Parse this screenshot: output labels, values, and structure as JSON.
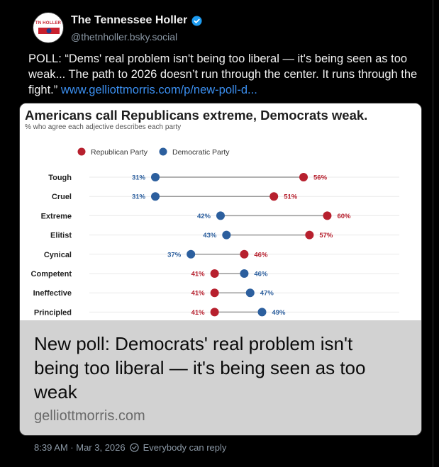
{
  "author": {
    "display_name": "The Tennessee Holler",
    "handle": "@thetnholler.bsky.social",
    "avatar_text": "TN HOLLER"
  },
  "post": {
    "text": "POLL: “Dems' real problem isn't being too liberal — it's being seen as too weak... The path to 2026 doesn’t run through the center. It runs through the fight.” ",
    "link_text": "www.gelliottmorris.com/p/new-poll-d..."
  },
  "card": {
    "headline": "New poll: Democrats' real problem isn't being too liberal — it's being seen as too weak",
    "domain": "gelliottmorris.com"
  },
  "meta": {
    "timestamp": "8:39 AM · Mar 3, 2026",
    "reply_setting": "Everybody can reply"
  },
  "colors": {
    "republican": "#b7202e",
    "democratic": "#2c5f9e",
    "link": "#3b8ff0",
    "verified": "#1d9bf0"
  },
  "chart_data": {
    "type": "dot",
    "title": "Americans call Republicans extreme, Democrats weak.",
    "subtitle": "% who agree each adjective describes each party",
    "categories": [
      "Tough",
      "Cruel",
      "Extreme",
      "Elitist",
      "Cynical",
      "Competent",
      "Ineffective",
      "Principled"
    ],
    "series": [
      {
        "name": "Republican Party",
        "values": [
          56,
          51,
          60,
          57,
          46,
          41,
          41,
          41
        ]
      },
      {
        "name": "Democratic Party",
        "values": [
          31,
          31,
          42,
          43,
          37,
          46,
          47,
          49
        ]
      }
    ],
    "value_suffix": "%",
    "legend": "top-left"
  }
}
